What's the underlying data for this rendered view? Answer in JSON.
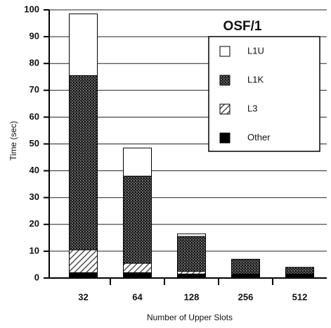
{
  "chart_data": {
    "type": "stacked_bar",
    "title": "OSF/1",
    "x_label": "Number of Upper Slots",
    "y_label": "Time (sec)",
    "categories": [
      "32",
      "64",
      "128",
      "256",
      "512"
    ],
    "series": [
      {
        "name": "Other",
        "color": "#000000",
        "pattern": "solid",
        "values": [
          2,
          2,
          1.5,
          1.5,
          1.5
        ]
      },
      {
        "name": "L3",
        "color": "#444444",
        "pattern": "diagonal",
        "values": [
          8.5,
          3.5,
          1,
          0,
          0
        ]
      },
      {
        "name": "L1K",
        "color": "#333333",
        "pattern": "dots",
        "values": [
          65,
          32.5,
          13,
          5.5,
          2.5
        ]
      },
      {
        "name": "L1U",
        "color": "#ffffff",
        "pattern": "none",
        "values": [
          23,
          10.5,
          1,
          0,
          0
        ]
      }
    ],
    "ylim": [
      0,
      100
    ],
    "yticks": [
      0,
      10,
      20,
      30,
      40,
      50,
      60,
      70,
      80,
      90,
      100
    ],
    "grid": true
  }
}
